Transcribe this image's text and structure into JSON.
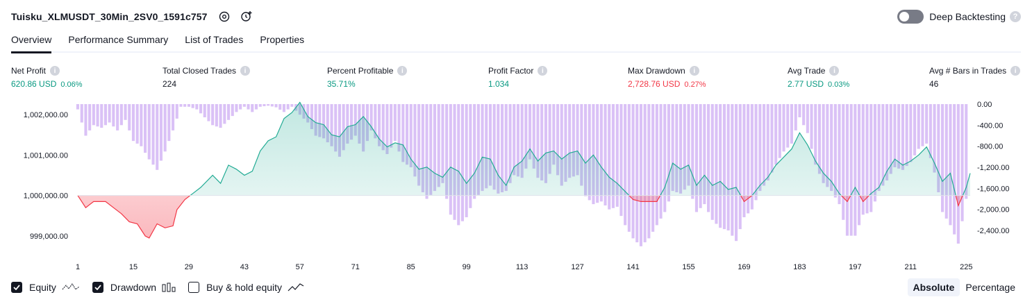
{
  "header": {
    "strategy_title": "Tuisku_XLMUSDT_30Min_2SV0_1591c757",
    "icons": [
      "settings-icon",
      "add-alert-icon"
    ],
    "deep_backtesting_label": "Deep Backtesting",
    "deep_backtesting_enabled": false
  },
  "tabs": [
    {
      "label": "Overview",
      "active": true
    },
    {
      "label": "Performance Summary",
      "active": false
    },
    {
      "label": "List of Trades",
      "active": false
    },
    {
      "label": "Properties",
      "active": false
    }
  ],
  "metrics": {
    "net_profit": {
      "label": "Net Profit",
      "value": "620.86 USD",
      "pct": "0.06%"
    },
    "total_closed_trades": {
      "label": "Total Closed Trades",
      "value": "224"
    },
    "percent_profitable": {
      "label": "Percent Profitable",
      "value": "35.71%"
    },
    "profit_factor": {
      "label": "Profit Factor",
      "value": "1.034"
    },
    "max_drawdown": {
      "label": "Max Drawdown",
      "value": "2,728.76 USD",
      "pct": "0.27%"
    },
    "avg_trade": {
      "label": "Avg Trade",
      "value": "2.77 USD",
      "pct": "0.03%"
    },
    "avg_bars": {
      "label": "Avg # Bars in Trades",
      "value": "46"
    }
  },
  "colors": {
    "profit": "#089981",
    "loss": "#f23645",
    "drawdown_bar": "#d4b6f5",
    "equity_line_up": "#22ab94",
    "equity_line_down": "#f23645"
  },
  "chart_data": {
    "type": "area",
    "equity_axis_labels": [
      "1,002,000.00",
      "1,001,000.00",
      "1,000,000.00",
      "999,000.00"
    ],
    "equity_axis_values": [
      1002000,
      1001000,
      1000000,
      999000
    ],
    "drawdown_axis_labels": [
      "0.00",
      "-400.00",
      "-800.00",
      "-1,200.00",
      "-1,600.00",
      "-2,000.00",
      "-2,400.00"
    ],
    "drawdown_axis_values": [
      0,
      -400,
      -800,
      -1200,
      -1600,
      -2000,
      -2400
    ],
    "x_tick_labels": [
      "1",
      "15",
      "29",
      "43",
      "57",
      "71",
      "85",
      "99",
      "113",
      "127",
      "141",
      "155",
      "169",
      "183",
      "197",
      "211",
      "225"
    ],
    "x_tick_values": [
      1,
      15,
      29,
      43,
      57,
      71,
      85,
      99,
      113,
      127,
      141,
      155,
      169,
      183,
      197,
      211,
      225
    ],
    "baseline_equity": 1000000,
    "series": [
      {
        "name": "Equity",
        "x": [
          1,
          3,
          5,
          8,
          10,
          12,
          14,
          16,
          18,
          19,
          21,
          23,
          25,
          26,
          28,
          30,
          32,
          35,
          37,
          39,
          41,
          43,
          45,
          47,
          49,
          51,
          53,
          55,
          57,
          59,
          61,
          63,
          65,
          67,
          69,
          71,
          73,
          75,
          77,
          79,
          81,
          83,
          85,
          87,
          89,
          91,
          93,
          95,
          97,
          99,
          101,
          103,
          105,
          107,
          109,
          111,
          113,
          115,
          117,
          119,
          121,
          123,
          125,
          127,
          129,
          131,
          133,
          135,
          137,
          139,
          141,
          143,
          145,
          147,
          149,
          151,
          153,
          155,
          157,
          159,
          161,
          163,
          165,
          167,
          169,
          171,
          173,
          175,
          177,
          179,
          181,
          183,
          185,
          187,
          189,
          191,
          193,
          195,
          197,
          199,
          201,
          203,
          205,
          207,
          209,
          211,
          213,
          215,
          217,
          219,
          221,
          223,
          225,
          226
        ],
        "values": [
          1000000,
          999700,
          999850,
          999850,
          999700,
          999550,
          999350,
          999300,
          999000,
          998950,
          999300,
          999200,
          999250,
          999650,
          999900,
          1000050,
          1000200,
          1000500,
          1000300,
          1000750,
          1000650,
          1000500,
          1000600,
          1001100,
          1001350,
          1001450,
          1001900,
          1002050,
          1002300,
          1001950,
          1001800,
          1001750,
          1001500,
          1001450,
          1001700,
          1001750,
          1001950,
          1001700,
          1001400,
          1001200,
          1001300,
          1001250,
          1000900,
          1000650,
          1000700,
          1000550,
          1000450,
          1000700,
          1000600,
          1000300,
          1000550,
          1000950,
          1000900,
          1000500,
          1000250,
          1000700,
          1000850,
          1001150,
          1000850,
          1001050,
          1001100,
          1000900,
          1001050,
          1001100,
          1000800,
          1001000,
          1000700,
          1000450,
          1000300,
          1000100,
          999900,
          999850,
          999850,
          999850,
          1000200,
          1000800,
          1000650,
          1000750,
          1000250,
          1000500,
          1000250,
          1000350,
          1000150,
          1000200,
          999850,
          1000000,
          1000250,
          1000450,
          1000750,
          1000950,
          1001150,
          1001550,
          1001250,
          1000850,
          1000550,
          1000350,
          1000050,
          999850,
          1000200,
          999850,
          1000050,
          1000200,
          1000600,
          1000900,
          1000750,
          1000850,
          1001000,
          1001200,
          1000800,
          1000350,
          1000550,
          999750,
          1000200,
          1000550
        ]
      },
      {
        "name": "Drawdown",
        "x": [
          1,
          3,
          5,
          7,
          9,
          11,
          13,
          15,
          17,
          19,
          21,
          23,
          25,
          27,
          29,
          31,
          33,
          35,
          37,
          39,
          41,
          43,
          45,
          47,
          49,
          51,
          53,
          55,
          57,
          59,
          61,
          63,
          65,
          67,
          69,
          71,
          73,
          75,
          77,
          79,
          81,
          83,
          85,
          87,
          89,
          91,
          93,
          95,
          97,
          99,
          101,
          103,
          105,
          107,
          109,
          111,
          113,
          115,
          117,
          119,
          121,
          123,
          125,
          127,
          129,
          131,
          133,
          135,
          137,
          139,
          141,
          143,
          145,
          147,
          149,
          151,
          153,
          155,
          157,
          159,
          161,
          163,
          165,
          167,
          169,
          171,
          173,
          175,
          177,
          179,
          181,
          183,
          185,
          187,
          189,
          191,
          193,
          195,
          197,
          199,
          201,
          203,
          205,
          207,
          209,
          211,
          213,
          215,
          217,
          219,
          221,
          223,
          225
        ],
        "values": [
          -100,
          -600,
          -400,
          -450,
          -350,
          -500,
          -300,
          -700,
          -800,
          -1050,
          -1250,
          -900,
          -500,
          -50,
          -50,
          -100,
          -250,
          -400,
          -450,
          -300,
          -150,
          -50,
          -150,
          -50,
          -30,
          -60,
          -150,
          -50,
          -200,
          -350,
          -600,
          -650,
          -800,
          -1000,
          -750,
          -600,
          -900,
          -500,
          -800,
          -950,
          -700,
          -1100,
          -1200,
          -1550,
          -1800,
          -1650,
          -1500,
          -2100,
          -2300,
          -2150,
          -1800,
          -1650,
          -1550,
          -1700,
          -1650,
          -1350,
          -1400,
          -1050,
          -1400,
          -1500,
          -1150,
          -1550,
          -1400,
          -1350,
          -1750,
          -1900,
          -1850,
          -2000,
          -1950,
          -2300,
          -2550,
          -2700,
          -2550,
          -2300,
          -2050,
          -1650,
          -1700,
          -1550,
          -2050,
          -1900,
          -2200,
          -2350,
          -2400,
          -2600,
          -2150,
          -2000,
          -1650,
          -1450,
          -1150,
          -900,
          -750,
          -250,
          -550,
          -1150,
          -1500,
          -1650,
          -1900,
          -2500,
          -2500,
          -2100,
          -2050,
          -1650,
          -1450,
          -1200,
          -1250,
          -1100,
          -850,
          -750,
          -1300,
          -2050,
          -2300,
          -2650,
          -1800
        ]
      },
      {
        "name": "Buy & hold equity",
        "visible": false
      }
    ]
  },
  "legend": [
    {
      "label": "Equity",
      "checked": true,
      "icon": "equity-line-icon"
    },
    {
      "label": "Drawdown",
      "checked": true,
      "icon": "drawdown-bars-icon"
    },
    {
      "label": "Buy & hold equity",
      "checked": false,
      "icon": "buy-hold-line-icon"
    }
  ],
  "scale_toggle": {
    "absolute_label": "Absolute",
    "percentage_label": "Percentage",
    "selected": "Absolute"
  }
}
